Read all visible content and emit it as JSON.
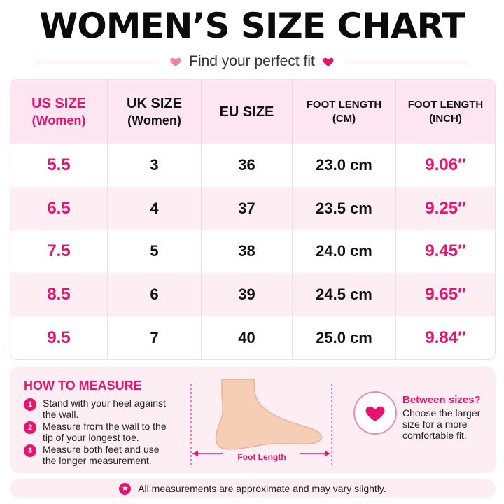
{
  "title": "WOMEN’S SIZE CHART",
  "subtitle": "Find your perfect fit",
  "colors": {
    "accent": "#e8136f",
    "header_bg": "#fde6ef",
    "row_alt_bg": "#fdeef4"
  },
  "table": {
    "headers": [
      {
        "main": "US SIZE",
        "sub": "(Women)"
      },
      {
        "main": "UK SIZE",
        "sub": "(Women)"
      },
      {
        "main": "EU SIZE",
        "sub": ""
      },
      {
        "main": "FOOT LENGTH",
        "sub": "(CM)"
      },
      {
        "main": "FOOT LENGTH",
        "sub": "(INCH)"
      }
    ],
    "rows": [
      {
        "us": "5.5",
        "uk": "3",
        "eu": "36",
        "cm": "23.0 cm",
        "inch": "9.06″"
      },
      {
        "us": "6.5",
        "uk": "4",
        "eu": "37",
        "cm": "23.5 cm",
        "inch": "9.25″"
      },
      {
        "us": "7.5",
        "uk": "5",
        "eu": "38",
        "cm": "24.0 cm",
        "inch": "9.45″"
      },
      {
        "us": "8.5",
        "uk": "6",
        "eu": "39",
        "cm": "24.5 cm",
        "inch": "9.65″"
      },
      {
        "us": "9.5",
        "uk": "7",
        "eu": "40",
        "cm": "25.0 cm",
        "inch": "9.84″"
      }
    ]
  },
  "how_to_measure": {
    "title": "HOW TO MEASURE",
    "steps": [
      {
        "num": "1",
        "text": "Stand with your heel against the wall."
      },
      {
        "num": "2",
        "text": "Measure from the wall to the tip of your longest toe."
      },
      {
        "num": "3",
        "text": "Measure both feet and use the longer measurement."
      }
    ],
    "foot_label": "Foot Length",
    "foot_icon": "foot-illustration"
  },
  "between_sizes": {
    "title": "Between sizes?",
    "text": "Choose the larger size for a more comfortable fit.",
    "icon": "heart-icon"
  },
  "note": {
    "text": "All measurements are approximate and may vary slightly.",
    "icon": "star-icon"
  }
}
